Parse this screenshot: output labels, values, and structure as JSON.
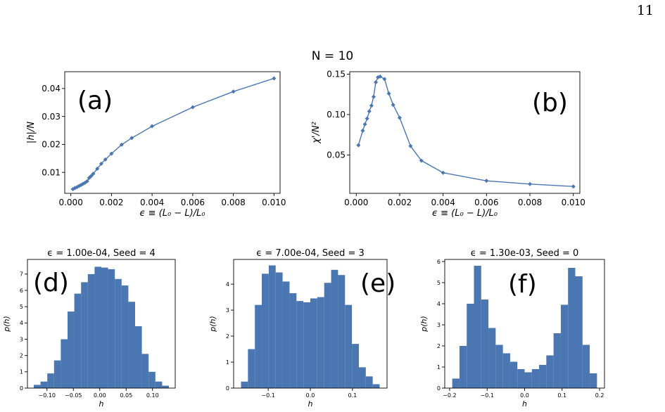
{
  "page": {
    "number": "11",
    "suptitle": "N = 10"
  },
  "chart_data": [
    {
      "panel": "(a)",
      "type": "line",
      "title": "",
      "xlabel": "ϵ ≡ (L₀ − L)/L₀",
      "ylabel": "|h|/N",
      "xlim": [
        -0.0003,
        0.0103
      ],
      "ylim": [
        0.0025,
        0.046
      ],
      "xticks": [
        0.0,
        0.002,
        0.004,
        0.006,
        0.008,
        0.01
      ],
      "xticklabels": [
        "0.000",
        "0.002",
        "0.004",
        "0.006",
        "0.008",
        "0.010"
      ],
      "yticks": [
        0.01,
        0.02,
        0.03,
        0.04
      ],
      "yticklabels": [
        "0.01",
        "0.02",
        "0.03",
        "0.04"
      ],
      "x": [
        0.0001,
        0.0002,
        0.0003,
        0.0004,
        0.0005,
        0.0006,
        0.0007,
        0.0008,
        0.0009,
        0.001,
        0.0011,
        0.0013,
        0.0015,
        0.0017,
        0.002,
        0.0025,
        0.003,
        0.004,
        0.006,
        0.008,
        0.01
      ],
      "y": [
        0.004,
        0.0044,
        0.0047,
        0.0051,
        0.0055,
        0.0059,
        0.0063,
        0.0068,
        0.008,
        0.0087,
        0.0095,
        0.0113,
        0.0131,
        0.0146,
        0.0167,
        0.0199,
        0.0223,
        0.0265,
        0.0333,
        0.0389,
        0.0436
      ],
      "color": "#4a76b2",
      "grid": false
    },
    {
      "panel": "(b)",
      "type": "line",
      "title": "",
      "xlabel": "ϵ ≡ (L₀ − L)/L₀",
      "ylabel": "χ'/N²",
      "xlim": [
        -0.0003,
        0.0103
      ],
      "ylim": [
        0.0025,
        0.153
      ],
      "xticks": [
        0.0,
        0.002,
        0.004,
        0.006,
        0.008,
        0.01
      ],
      "xticklabels": [
        "0.000",
        "0.002",
        "0.004",
        "0.006",
        "0.008",
        "0.010"
      ],
      "yticks": [
        0.05,
        0.1,
        0.15
      ],
      "yticklabels": [
        "0.05",
        "0.10",
        "0.15"
      ],
      "x": [
        0.0001,
        0.0003,
        0.0004,
        0.0005,
        0.0006,
        0.0007,
        0.0008,
        0.0009,
        0.001,
        0.0011,
        0.0013,
        0.0015,
        0.0017,
        0.002,
        0.0025,
        0.003,
        0.004,
        0.006,
        0.008,
        0.01
      ],
      "y": [
        0.062,
        0.08,
        0.088,
        0.095,
        0.104,
        0.111,
        0.122,
        0.14,
        0.146,
        0.147,
        0.144,
        0.126,
        0.112,
        0.096,
        0.061,
        0.043,
        0.028,
        0.018,
        0.014,
        0.011
      ],
      "color": "#4a76b2",
      "grid": false
    },
    {
      "panel": "(d)",
      "type": "bar",
      "title": "ϵ = 1.00e-04, Seed = 4",
      "xlabel": "h",
      "ylabel": "p(h)",
      "xlim": [
        -0.137,
        0.143
      ],
      "ylim": [
        0,
        7.9
      ],
      "xticks": [
        -0.1,
        -0.05,
        0.0,
        0.05,
        0.1
      ],
      "xticklabels": [
        "−0.10",
        "−0.05",
        "0.00",
        "0.05",
        "0.10"
      ],
      "yticks": [
        0,
        1,
        2,
        3,
        4,
        5,
        6,
        7
      ],
      "yticklabels": [
        "0",
        "1",
        "2",
        "3",
        "4",
        "5",
        "6",
        "7"
      ],
      "bin_start": -0.125,
      "bin_width": 0.0128,
      "values": [
        0.2,
        0.4,
        0.9,
        1.7,
        3.0,
        4.7,
        5.8,
        6.5,
        7.0,
        7.45,
        7.4,
        7.3,
        6.7,
        6.3,
        5.3,
        3.8,
        2.1,
        1.0,
        0.4,
        0.15
      ],
      "color": "#4a76b2"
    },
    {
      "panel": "(e)",
      "type": "bar",
      "title": "ϵ = 7.00e-04, Seed = 3",
      "xlabel": "h",
      "ylabel": "p(h)",
      "xlim": [
        -0.182,
        0.182
      ],
      "ylim": [
        0,
        4.95
      ],
      "xticks": [
        -0.1,
        0.0,
        0.1
      ],
      "xticklabels": [
        "−0.1",
        "0.0",
        "0.1"
      ],
      "yticks": [
        0,
        1,
        2,
        3,
        4
      ],
      "yticklabels": [
        "0",
        "1",
        "2",
        "3",
        "4"
      ],
      "bin_start": -0.1645,
      "bin_width": 0.01645,
      "values": [
        0.25,
        1.5,
        3.2,
        4.4,
        4.72,
        4.45,
        4.1,
        3.65,
        3.35,
        3.3,
        3.45,
        3.5,
        4.05,
        4.55,
        4.35,
        3.2,
        1.7,
        0.8,
        0.45,
        0.15
      ],
      "color": "#4a76b2"
    },
    {
      "panel": "(f)",
      "type": "bar",
      "title": "ϵ = 1.30e-03, Seed = 0",
      "xlabel": "h",
      "ylabel": "p(h)",
      "xlim": [
        -0.213,
        0.213
      ],
      "ylim": [
        0,
        6.1
      ],
      "xticks": [
        -0.2,
        -0.1,
        0.0,
        0.1,
        0.2
      ],
      "xticklabels": [
        "−0.2",
        "−0.1",
        "0.0",
        "0.1",
        "0.2"
      ],
      "yticks": [
        0,
        1,
        2,
        3,
        4,
        5,
        6
      ],
      "yticklabels": [
        "0",
        "1",
        "2",
        "3",
        "4",
        "5",
        "6"
      ],
      "bin_start": -0.193,
      "bin_width": 0.0193,
      "values": [
        0.45,
        2.0,
        4.0,
        5.8,
        4.2,
        2.85,
        2.05,
        1.65,
        1.25,
        0.9,
        0.75,
        0.9,
        1.1,
        1.55,
        2.6,
        3.95,
        5.7,
        5.3,
        2.05,
        0.7
      ],
      "color": "#4a76b2"
    }
  ]
}
